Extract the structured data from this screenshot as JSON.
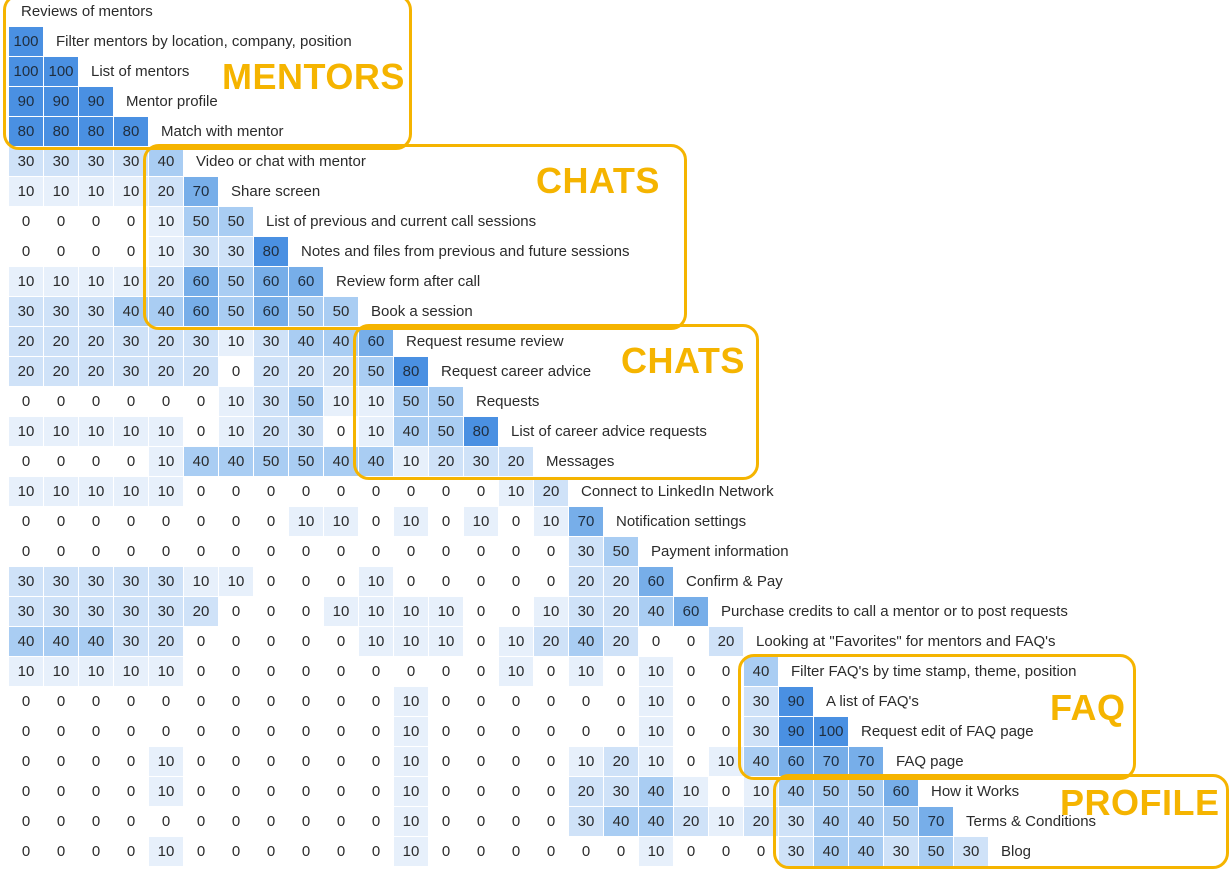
{
  "chart_data": {
    "type": "heatmap",
    "rows": [
      {
        "label": "Reviews of mentors",
        "values": []
      },
      {
        "label": "Filter mentors by location, company, position",
        "values": [
          100
        ]
      },
      {
        "label": "List of mentors",
        "values": [
          100,
          100
        ]
      },
      {
        "label": "Mentor profile",
        "values": [
          90,
          90,
          90
        ]
      },
      {
        "label": "Match with mentor",
        "values": [
          80,
          80,
          80,
          80
        ]
      },
      {
        "label": "Video or chat with mentor",
        "values": [
          30,
          30,
          30,
          30,
          40
        ]
      },
      {
        "label": "Share screen",
        "values": [
          10,
          10,
          10,
          10,
          20,
          70
        ]
      },
      {
        "label": "List of previous and current call sessions",
        "values": [
          0,
          0,
          0,
          0,
          10,
          50,
          50
        ]
      },
      {
        "label": "Notes and files from previous and future sessions",
        "values": [
          0,
          0,
          0,
          0,
          10,
          30,
          30,
          80
        ]
      },
      {
        "label": "Review form after call",
        "values": [
          10,
          10,
          10,
          10,
          20,
          60,
          50,
          60,
          60
        ]
      },
      {
        "label": "Book a session",
        "values": [
          30,
          30,
          30,
          40,
          40,
          60,
          50,
          60,
          50,
          50
        ]
      },
      {
        "label": "Request resume review",
        "values": [
          20,
          20,
          20,
          30,
          20,
          30,
          10,
          30,
          40,
          40,
          60
        ]
      },
      {
        "label": "Request career advice",
        "values": [
          20,
          20,
          20,
          30,
          20,
          20,
          0,
          20,
          20,
          20,
          50,
          80
        ]
      },
      {
        "label": "Requests",
        "values": [
          0,
          0,
          0,
          0,
          0,
          0,
          10,
          30,
          50,
          10,
          10,
          50,
          50
        ]
      },
      {
        "label": "List of career advice requests",
        "values": [
          10,
          10,
          10,
          10,
          10,
          0,
          10,
          20,
          30,
          0,
          10,
          40,
          50,
          80
        ]
      },
      {
        "label": "Messages",
        "values": [
          0,
          0,
          0,
          0,
          10,
          40,
          40,
          50,
          50,
          40,
          40,
          10,
          20,
          30,
          20
        ]
      },
      {
        "label": "Connect to LinkedIn Network",
        "values": [
          10,
          10,
          10,
          10,
          10,
          0,
          0,
          0,
          0,
          0,
          0,
          0,
          0,
          0,
          10,
          20
        ]
      },
      {
        "label": "Notification settings",
        "values": [
          0,
          0,
          0,
          0,
          0,
          0,
          0,
          0,
          10,
          10,
          0,
          10,
          0,
          10,
          0,
          10,
          70
        ]
      },
      {
        "label": "Payment information",
        "values": [
          0,
          0,
          0,
          0,
          0,
          0,
          0,
          0,
          0,
          0,
          0,
          0,
          0,
          0,
          0,
          0,
          30,
          50
        ]
      },
      {
        "label": "Confirm & Pay",
        "values": [
          30,
          30,
          30,
          30,
          30,
          10,
          10,
          0,
          0,
          0,
          10,
          0,
          0,
          0,
          0,
          0,
          20,
          20,
          60
        ]
      },
      {
        "label": "Purchase credits to call a mentor or to post requests",
        "values": [
          30,
          30,
          30,
          30,
          30,
          20,
          0,
          0,
          0,
          10,
          10,
          10,
          10,
          0,
          0,
          10,
          30,
          20,
          40,
          60
        ]
      },
      {
        "label": "Looking at \"Favorites\" for mentors and FAQ's",
        "values": [
          40,
          40,
          40,
          30,
          20,
          0,
          0,
          0,
          0,
          0,
          10,
          10,
          10,
          0,
          10,
          20,
          40,
          20,
          0,
          0,
          20
        ]
      },
      {
        "label": "Filter FAQ's by time stamp, theme, position",
        "values": [
          10,
          10,
          10,
          10,
          10,
          0,
          0,
          0,
          0,
          0,
          0,
          0,
          0,
          0,
          10,
          0,
          10,
          0,
          10,
          0,
          0,
          40
        ]
      },
      {
        "label": "A list of FAQ's",
        "values": [
          0,
          0,
          0,
          0,
          0,
          0,
          0,
          0,
          0,
          0,
          0,
          10,
          0,
          0,
          0,
          0,
          0,
          0,
          10,
          0,
          0,
          30,
          90
        ]
      },
      {
        "label": "Request edit of FAQ page",
        "values": [
          0,
          0,
          0,
          0,
          0,
          0,
          0,
          0,
          0,
          0,
          0,
          10,
          0,
          0,
          0,
          0,
          0,
          0,
          10,
          0,
          0,
          30,
          90,
          100
        ]
      },
      {
        "label": "FAQ page",
        "values": [
          0,
          0,
          0,
          0,
          10,
          0,
          0,
          0,
          0,
          0,
          0,
          10,
          0,
          0,
          0,
          0,
          10,
          20,
          10,
          0,
          10,
          40,
          60,
          70,
          70
        ]
      },
      {
        "label": "How it Works",
        "values": [
          0,
          0,
          0,
          0,
          10,
          0,
          0,
          0,
          0,
          0,
          0,
          10,
          0,
          0,
          0,
          0,
          20,
          30,
          40,
          10,
          0,
          10,
          40,
          50,
          50,
          60
        ]
      },
      {
        "label": "Terms & Conditions",
        "values": [
          0,
          0,
          0,
          0,
          0,
          0,
          0,
          0,
          0,
          0,
          0,
          10,
          0,
          0,
          0,
          0,
          30,
          40,
          40,
          20,
          10,
          20,
          30,
          40,
          40,
          50,
          70
        ]
      },
      {
        "label": "Blog",
        "values": [
          0,
          0,
          0,
          0,
          10,
          0,
          0,
          0,
          0,
          0,
          0,
          10,
          0,
          0,
          0,
          0,
          0,
          0,
          10,
          0,
          0,
          0,
          30,
          40,
          40,
          30,
          50,
          30
        ]
      }
    ],
    "groups": [
      {
        "label": "MENTORS",
        "first_row": 0,
        "last_row": 4,
        "first_col": 0,
        "last_col": 3
      },
      {
        "label": "CHATS",
        "first_row": 5,
        "last_row": 10,
        "first_col": 4,
        "last_col": 9
      },
      {
        "label": "CHATS",
        "first_row": 11,
        "last_row": 15,
        "first_col": 10,
        "last_col": 14
      },
      {
        "label": "FAQ",
        "first_row": 22,
        "last_row": 25,
        "first_col": 21,
        "last_col": 24
      },
      {
        "label": "PROFILE",
        "first_row": 26,
        "last_row": 28,
        "first_col": 22,
        "last_col": 27
      }
    ],
    "colors": {
      "accent": "#f5b400",
      "high": "#4a90e2",
      "mid": "#9fc7f2",
      "low": "#e8f1fb",
      "zero": "#ffffff"
    }
  }
}
